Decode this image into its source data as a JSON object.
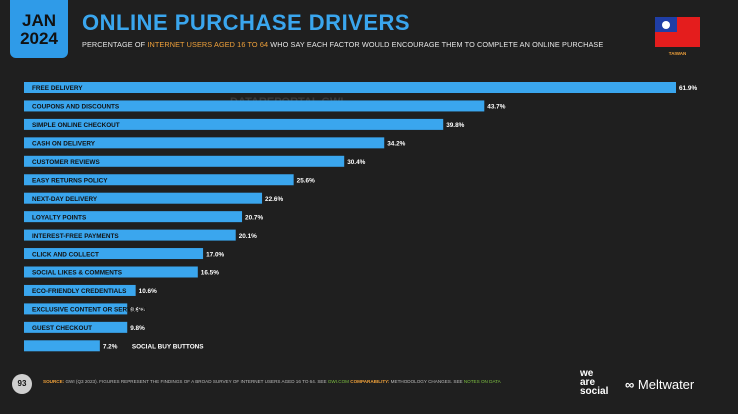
{
  "header": {
    "month": "JAN",
    "year": "2024",
    "title": "ONLINE PURCHASE DRIVERS",
    "subtitle_pre": "PERCENTAGE OF ",
    "subtitle_hl": "INTERNET USERS AGED 16 TO 64",
    "subtitle_post": " WHO SAY EACH FACTOR WOULD ENCOURAGE THEM TO COMPLETE AN ONLINE PURCHASE",
    "country": "TAIWAN"
  },
  "watermark": "DATAREPORTAL  GWI.",
  "colors": {
    "bar": "#3aa6ee",
    "background": "#1f1f1f",
    "accent": "#f0a13a"
  },
  "chart_data": {
    "type": "bar",
    "orientation": "horizontal",
    "categories": [
      "FREE DELIVERY",
      "COUPONS AND DISCOUNTS",
      "SIMPLE ONLINE CHECKOUT",
      "CASH ON DELIVERY",
      "CUSTOMER REVIEWS",
      "EASY RETURNS POLICY",
      "NEXT-DAY DELIVERY",
      "LOYALTY POINTS",
      "INTEREST-FREE PAYMENTS",
      "CLICK AND COLLECT",
      "SOCIAL LIKES & COMMENTS",
      "ECO-FRIENDLY CREDENTIALS",
      "EXCLUSIVE CONTENT OR SERVICES",
      "GUEST CHECKOUT",
      "SOCIAL BUY BUTTONS"
    ],
    "values": [
      61.9,
      43.7,
      39.8,
      34.2,
      30.4,
      25.6,
      22.6,
      20.7,
      20.1,
      17.0,
      16.5,
      10.6,
      9.8,
      9.8,
      7.2
    ],
    "value_labels": [
      "61.9%",
      "43.7%",
      "39.8%",
      "34.2%",
      "30.4%",
      "25.6%",
      "22.6%",
      "20.7%",
      "20.1%",
      "17.0%",
      "16.5%",
      "10.6%",
      "9.8%",
      "9.8%",
      "7.2%"
    ],
    "xlim": [
      0,
      61.9
    ]
  },
  "footer": {
    "page_number": "93",
    "source_key": "SOURCE:",
    "source_text": " GWI (Q3 2023). FIGURES REPRESENT THE FINDINGS OF A BROAD SURVEY OF INTERNET USERS AGED 16 TO 64. SEE ",
    "source_link": "GWI.COM",
    "comparability_key": " COMPARABILITY:",
    "comparability_text": " METHODOLOGY CHANGES. SEE ",
    "notes_link": "NOTES ON DATA",
    "logo_we_are_social": "we\nare\nsocial",
    "logo_meltwater": "Meltwater"
  }
}
